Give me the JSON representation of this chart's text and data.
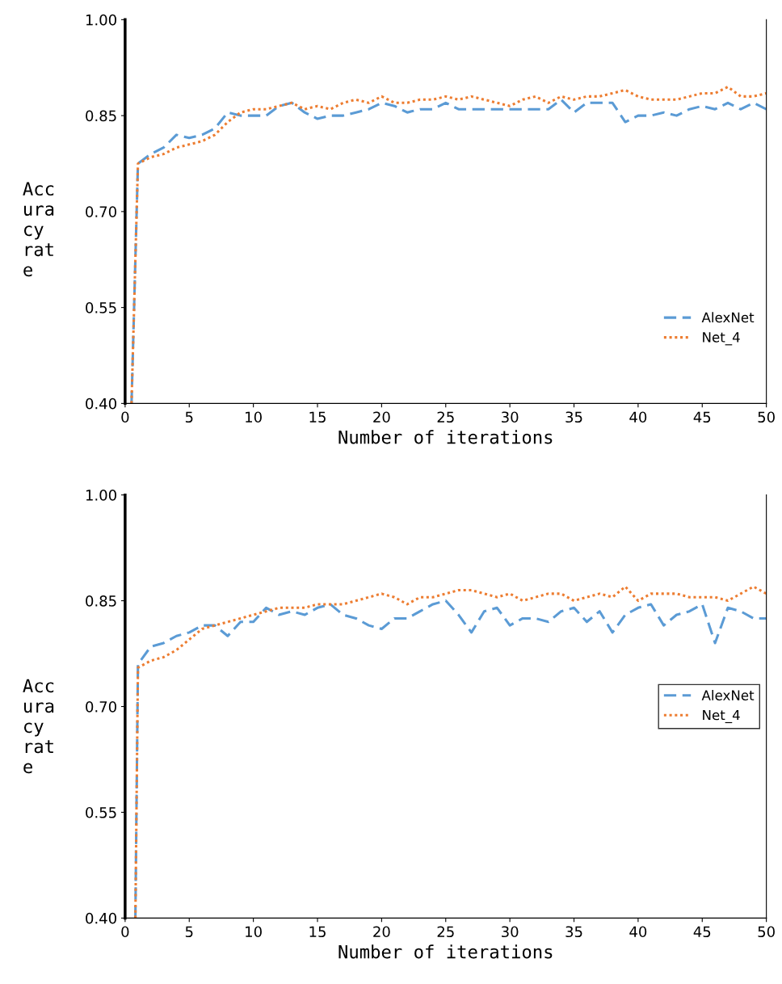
{
  "chart_data": [
    {
      "type": "line",
      "xlabel": "Number of iterations",
      "ylabel": "Acc\nura\ncy\nrat\ne",
      "x": [
        0.5,
        1,
        2,
        3,
        4,
        5,
        6,
        7,
        8,
        9,
        10,
        11,
        12,
        13,
        14,
        15,
        16,
        17,
        18,
        19,
        20,
        21,
        22,
        23,
        24,
        25,
        26,
        27,
        28,
        29,
        30,
        31,
        32,
        33,
        34,
        35,
        36,
        37,
        38,
        39,
        40,
        41,
        42,
        43,
        44,
        45,
        46,
        47,
        48,
        49,
        50
      ],
      "series": [
        {
          "name": "AlexNet",
          "color": "#5b9bd5",
          "line_style": "dashed",
          "values": [
            0.4,
            0.775,
            0.79,
            0.8,
            0.82,
            0.815,
            0.82,
            0.83,
            0.855,
            0.85,
            0.85,
            0.85,
            0.865,
            0.87,
            0.855,
            0.845,
            0.85,
            0.85,
            0.855,
            0.86,
            0.87,
            0.865,
            0.855,
            0.86,
            0.86,
            0.87,
            0.86,
            0.86,
            0.86,
            0.86,
            0.86,
            0.86,
            0.86,
            0.86,
            0.875,
            0.855,
            0.87,
            0.87,
            0.87,
            0.84,
            0.85,
            0.85,
            0.855,
            0.85,
            0.86,
            0.865,
            0.86,
            0.87,
            0.86,
            0.87,
            0.86
          ]
        },
        {
          "name": "Net_4",
          "color": "#ed7d31",
          "line_style": "dotted",
          "values": [
            0.4,
            0.775,
            0.785,
            0.79,
            0.8,
            0.805,
            0.81,
            0.82,
            0.84,
            0.855,
            0.86,
            0.86,
            0.865,
            0.87,
            0.86,
            0.865,
            0.86,
            0.87,
            0.875,
            0.87,
            0.88,
            0.87,
            0.87,
            0.875,
            0.875,
            0.88,
            0.875,
            0.88,
            0.875,
            0.87,
            0.865,
            0.875,
            0.88,
            0.87,
            0.88,
            0.875,
            0.88,
            0.88,
            0.885,
            0.89,
            0.88,
            0.875,
            0.875,
            0.875,
            0.88,
            0.885,
            0.885,
            0.895,
            0.88,
            0.88,
            0.885
          ]
        }
      ],
      "xlim": [
        0,
        50
      ],
      "xticks": [
        0,
        5,
        10,
        15,
        20,
        25,
        30,
        35,
        40,
        45,
        50
      ],
      "ylim": [
        0.4,
        1.0
      ],
      "yticks": [
        {
          "value": 0.4,
          "label": "0.40"
        },
        {
          "value": 0.55,
          "label": "0.55"
        },
        {
          "value": 0.7,
          "label": "0.70"
        },
        {
          "value": 0.85,
          "label": "0.85"
        },
        {
          "value": 1.0,
          "label": "1.00"
        }
      ],
      "legend": "bottom right",
      "grid": false,
      "marker": "none"
    },
    {
      "type": "line",
      "xlabel": "Number of iterations",
      "ylabel": "Acc\nura\ncy\nrat\ne",
      "x": [
        0.8,
        1,
        2,
        3,
        4,
        5,
        6,
        7,
        8,
        9,
        10,
        11,
        12,
        13,
        14,
        15,
        16,
        17,
        18,
        19,
        20,
        21,
        22,
        23,
        24,
        25,
        26,
        27,
        28,
        29,
        30,
        31,
        32,
        33,
        34,
        35,
        36,
        37,
        38,
        39,
        40,
        41,
        42,
        43,
        44,
        45,
        46,
        47,
        48,
        49,
        50
      ],
      "series": [
        {
          "name": "AlexNet",
          "color": "#5b9bd5",
          "line_style": "dashed",
          "values": [
            0.4,
            0.76,
            0.785,
            0.79,
            0.8,
            0.805,
            0.815,
            0.815,
            0.8,
            0.82,
            0.82,
            0.84,
            0.83,
            0.835,
            0.83,
            0.84,
            0.845,
            0.83,
            0.825,
            0.815,
            0.81,
            0.825,
            0.825,
            0.835,
            0.845,
            0.85,
            0.83,
            0.805,
            0.835,
            0.84,
            0.815,
            0.825,
            0.825,
            0.82,
            0.835,
            0.84,
            0.82,
            0.835,
            0.805,
            0.83,
            0.84,
            0.845,
            0.815,
            0.83,
            0.835,
            0.845,
            0.79,
            0.84,
            0.835,
            0.825,
            0.825
          ]
        },
        {
          "name": "Net_4",
          "color": "#ed7d31",
          "line_style": "dotted",
          "values": [
            0.4,
            0.755,
            0.765,
            0.77,
            0.78,
            0.795,
            0.81,
            0.815,
            0.82,
            0.825,
            0.83,
            0.835,
            0.84,
            0.84,
            0.84,
            0.845,
            0.845,
            0.845,
            0.85,
            0.855,
            0.86,
            0.855,
            0.845,
            0.855,
            0.855,
            0.86,
            0.865,
            0.865,
            0.86,
            0.855,
            0.86,
            0.85,
            0.855,
            0.86,
            0.86,
            0.85,
            0.855,
            0.86,
            0.855,
            0.87,
            0.85,
            0.86,
            0.86,
            0.86,
            0.855,
            0.855,
            0.855,
            0.85,
            0.86,
            0.87,
            0.86
          ]
        }
      ],
      "xlim": [
        0,
        50
      ],
      "xticks": [
        0,
        5,
        10,
        15,
        20,
        25,
        30,
        35,
        40,
        45,
        50
      ],
      "ylim": [
        0.4,
        1.0
      ],
      "yticks": [
        {
          "value": 0.4,
          "label": "0.40"
        },
        {
          "value": 0.55,
          "label": "0.55"
        },
        {
          "value": 0.7,
          "label": "0.70"
        },
        {
          "value": 0.85,
          "label": "0.85"
        },
        {
          "value": 1.0,
          "label": "1.00"
        }
      ],
      "legend": "right",
      "grid": false,
      "marker": "none"
    }
  ]
}
